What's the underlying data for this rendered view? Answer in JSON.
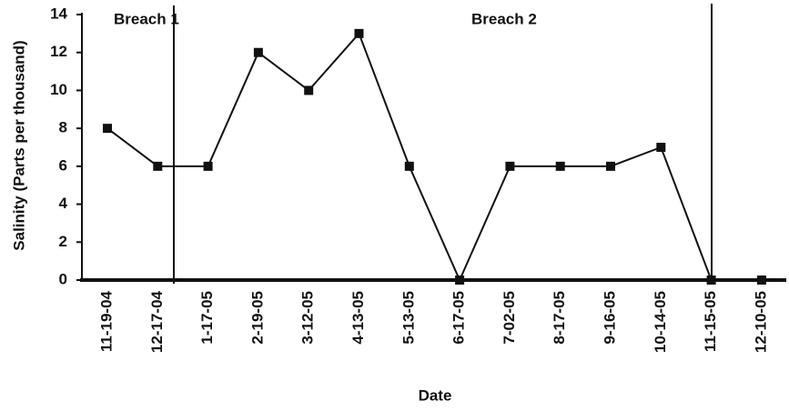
{
  "chart_data": {
    "type": "line",
    "x_label": "Date",
    "y_label": "Salinity (Parts per thousand)",
    "annotations": [
      "Breach 1",
      "Breach 2"
    ],
    "categories": [
      "11-19-04",
      "12-17-04",
      "1-17-05",
      "2-19-05",
      "3-12-05",
      "4-13-05",
      "5-13-05",
      "6-17-05",
      "7-02-05",
      "8-17-05",
      "9-16-05",
      "10-14-05",
      "11-15-05",
      "12-10-05"
    ],
    "values": [
      8,
      6,
      6,
      12,
      10,
      13,
      6,
      0,
      6,
      6,
      6,
      7,
      0,
      0
    ],
    "color": "#111111",
    "ylim": [
      0,
      14
    ],
    "yticks": [
      0,
      2,
      4,
      6,
      8,
      10,
      12,
      14
    ]
  }
}
